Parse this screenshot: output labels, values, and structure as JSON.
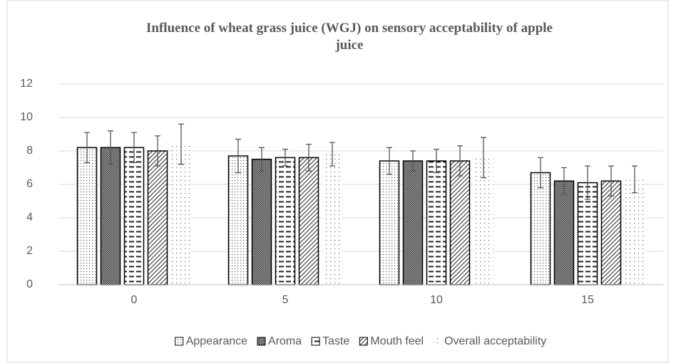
{
  "chart_data": {
    "type": "bar",
    "title": "Influence of wheat grass juice (WGJ) on sensory acceptability of apple juice",
    "categories": [
      "0",
      "5",
      "10",
      "15"
    ],
    "series": [
      {
        "name": "Appearance",
        "values": [
          8.2,
          7.7,
          7.4,
          6.7
        ],
        "errors": [
          0.9,
          1.0,
          0.8,
          0.9
        ]
      },
      {
        "name": "Aroma",
        "values": [
          8.2,
          7.5,
          7.4,
          6.2
        ],
        "errors": [
          1.0,
          0.7,
          0.6,
          0.8
        ]
      },
      {
        "name": "Taste",
        "values": [
          8.2,
          7.6,
          7.4,
          6.1
        ],
        "errors": [
          0.9,
          0.5,
          0.7,
          1.0
        ]
      },
      {
        "name": "Mouth feel",
        "values": [
          8.0,
          7.6,
          7.4,
          6.2
        ],
        "errors": [
          0.9,
          0.8,
          0.9,
          0.9
        ]
      },
      {
        "name": "Overall acceptability",
        "values": [
          8.4,
          7.8,
          7.6,
          6.3
        ],
        "errors": [
          1.2,
          0.7,
          1.2,
          0.8
        ]
      }
    ],
    "ylim": [
      0,
      12
    ],
    "yticks": [
      0,
      2,
      4,
      6,
      8,
      10,
      12
    ],
    "grid": true,
    "legend": "bottom"
  }
}
